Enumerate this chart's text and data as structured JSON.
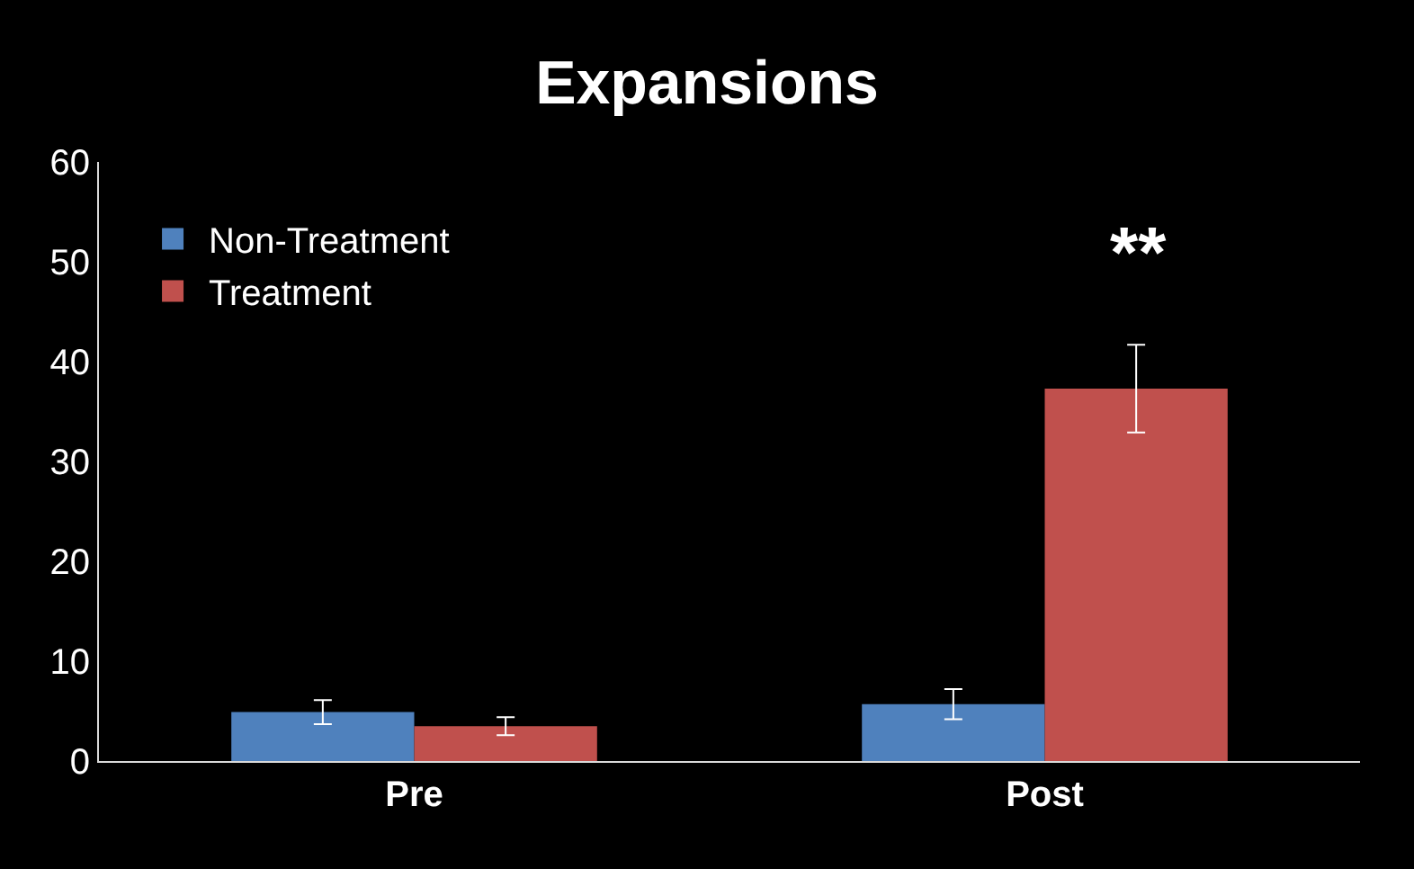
{
  "chart_data": {
    "type": "bar",
    "title": "Expansions",
    "categories": [
      "Pre",
      "Post"
    ],
    "series": [
      {
        "name": "Non-Treatment",
        "color": "#4f81bd",
        "values": [
          4.9,
          5.7
        ],
        "errors": [
          1.2,
          1.5
        ]
      },
      {
        "name": "Treatment",
        "color": "#c0504d",
        "values": [
          3.5,
          37.3
        ],
        "errors": [
          0.9,
          4.4
        ]
      }
    ],
    "ylim": [
      0,
      60
    ],
    "yticks": [
      0,
      10,
      20,
      30,
      40,
      50,
      60
    ],
    "grid": false,
    "legend": "top left",
    "annotations": [
      "**"
    ]
  }
}
